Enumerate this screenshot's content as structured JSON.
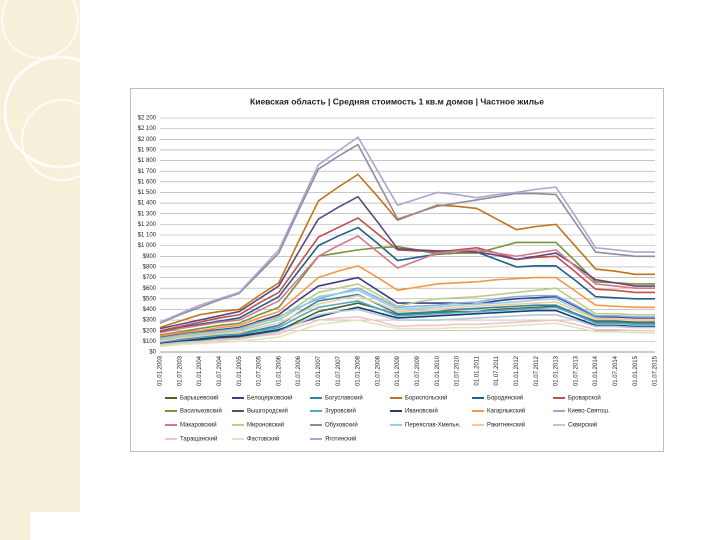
{
  "chart_data": {
    "type": "line",
    "title": "Киевская область | Средняя стоимость 1 кв.м домов | Частное жилье",
    "categories": [
      "01.01.2003",
      "01.07.2003",
      "01.01.2004",
      "01.07.2004",
      "01.01.2005",
      "01.07.2005",
      "01.01.2006",
      "01.07.2006",
      "01.01.2007",
      "01.07.2007",
      "01.01.2008",
      "01.07.2008",
      "01.01.2009",
      "01.07.2009",
      "01.01.2010",
      "01.07.2010",
      "01.01.2011",
      "01.07.2011",
      "01.01.2012",
      "01.07.2012",
      "01.01.2013",
      "01.07.2013",
      "01.01.2014",
      "01.07.2014",
      "01.01.2015",
      "01.07.2015"
    ],
    "ylim": [
      0,
      2200
    ],
    "yticks": [
      {
        "value": 0,
        "label": "$0"
      },
      {
        "value": 100,
        "label": "$100"
      },
      {
        "value": 200,
        "label": "$200"
      },
      {
        "value": 300,
        "label": "$300"
      },
      {
        "value": 400,
        "label": "$400"
      },
      {
        "value": 500,
        "label": "$500"
      },
      {
        "value": 600,
        "label": "$600"
      },
      {
        "value": 700,
        "label": "$700"
      },
      {
        "value": 800,
        "label": "$800"
      },
      {
        "value": 900,
        "label": "$900"
      },
      {
        "value": 1000,
        "label": "$1 000"
      },
      {
        "value": 1100,
        "label": "$1 100"
      },
      {
        "value": 1200,
        "label": "$1 200"
      },
      {
        "value": 1300,
        "label": "$1 300"
      },
      {
        "value": 1400,
        "label": "$1 400"
      },
      {
        "value": 1500,
        "label": "$1 500"
      },
      {
        "value": 1600,
        "label": "$1 600"
      },
      {
        "value": 1700,
        "label": "$1 700"
      },
      {
        "value": 1800,
        "label": "$1 800"
      },
      {
        "value": 1900,
        "label": "$1 900"
      },
      {
        "value": 2000,
        "label": "$2 000"
      },
      {
        "value": 2100,
        "label": "$2 100"
      },
      {
        "value": 2200,
        "label": "$2 200"
      }
    ],
    "grid": true,
    "legend": "bottom",
    "series": [
      {
        "name": "Барышевский",
        "color": "#4f6228",
        "values": [
          80,
          100,
          110,
          130,
          140,
          170,
          200,
          290,
          380,
          420,
          460,
          410,
          350,
          360,
          370,
          380,
          380,
          400,
          410,
          420,
          430,
          360,
          290,
          290,
          280,
          280
        ]
      },
      {
        "name": "Белоцерковский",
        "color": "#403c8c",
        "values": [
          140,
          170,
          190,
          210,
          230,
          290,
          350,
          490,
          620,
          660,
          700,
          580,
          460,
          460,
          460,
          460,
          450,
          480,
          500,
          510,
          520,
          430,
          330,
          330,
          320,
          320
        ]
      },
      {
        "name": "Богуславский",
        "color": "#31859c",
        "values": [
          100,
          120,
          140,
          160,
          170,
          210,
          250,
          370,
          480,
          510,
          540,
          450,
          360,
          370,
          380,
          400,
          410,
          420,
          430,
          440,
          440,
          360,
          280,
          280,
          270,
          270
        ]
      },
      {
        "name": "Бориспольский",
        "color": "#c0741a",
        "values": [
          230,
          290,
          350,
          380,
          400,
          530,
          650,
          1040,
          1420,
          1550,
          1670,
          1460,
          1240,
          1310,
          1380,
          1370,
          1350,
          1250,
          1150,
          1180,
          1200,
          990,
          780,
          760,
          730,
          730
        ]
      },
      {
        "name": "Бородянский",
        "color": "#1f5f8b",
        "values": [
          190,
          230,
          260,
          290,
          320,
          420,
          520,
          760,
          1000,
          1090,
          1170,
          1020,
          860,
          890,
          920,
          930,
          940,
          870,
          800,
          810,
          810,
          670,
          520,
          510,
          500,
          500
        ]
      },
      {
        "name": "Броварской",
        "color": "#c0504d",
        "values": [
          200,
          240,
          280,
          320,
          350,
          460,
          560,
          820,
          1080,
          1170,
          1260,
          1110,
          960,
          950,
          940,
          960,
          980,
          930,
          870,
          890,
          900,
          750,
          590,
          580,
          560,
          560
        ]
      },
      {
        "name": "Васильковский",
        "color": "#77933c",
        "values": [
          160,
          190,
          220,
          250,
          270,
          350,
          420,
          660,
          900,
          930,
          960,
          980,
          990,
          960,
          920,
          930,
          930,
          980,
          1030,
          1030,
          1030,
          850,
          660,
          650,
          640,
          640
        ]
      },
      {
        "name": "Вышгородский",
        "color": "#5f497a",
        "values": [
          220,
          260,
          300,
          340,
          380,
          500,
          620,
          940,
          1250,
          1360,
          1460,
          1220,
          970,
          960,
          950,
          950,
          940,
          910,
          870,
          900,
          930,
          810,
          680,
          650,
          620,
          620
        ]
      },
      {
        "name": "Згуровский",
        "color": "#4bacc6",
        "values": [
          90,
          110,
          130,
          150,
          160,
          200,
          230,
          330,
          420,
          450,
          480,
          410,
          340,
          350,
          360,
          370,
          380,
          390,
          400,
          410,
          420,
          350,
          270,
          270,
          260,
          260
        ]
      },
      {
        "name": "Ивановский",
        "color": "#1f3c6e",
        "values": [
          80,
          100,
          120,
          140,
          150,
          180,
          210,
          270,
          330,
          380,
          420,
          370,
          320,
          330,
          340,
          350,
          360,
          370,
          380,
          390,
          390,
          320,
          250,
          250,
          240,
          240
        ]
      },
      {
        "name": "Кагарлыкский",
        "color": "#f79646",
        "values": [
          150,
          180,
          200,
          230,
          250,
          320,
          380,
          540,
          700,
          760,
          810,
          700,
          580,
          610,
          640,
          650,
          660,
          680,
          690,
          700,
          700,
          570,
          440,
          430,
          420,
          420
        ]
      },
      {
        "name": "Киево-Святош.",
        "color": "#8eaadb",
        "values": [
          130,
          160,
          180,
          200,
          220,
          280,
          330,
          420,
          500,
          550,
          600,
          510,
          420,
          430,
          440,
          460,
          470,
          500,
          520,
          530,
          530,
          440,
          340,
          340,
          330,
          330
        ]
      },
      {
        "name": "Макаровский",
        "color": "#d9758c",
        "values": [
          180,
          220,
          250,
          280,
          300,
          390,
          480,
          690,
          900,
          1000,
          1090,
          940,
          790,
          860,
          930,
          950,
          960,
          930,
          900,
          930,
          960,
          800,
          640,
          620,
          600,
          600
        ]
      },
      {
        "name": "Мироновский",
        "color": "#b7d086",
        "values": [
          120,
          150,
          170,
          190,
          210,
          270,
          320,
          440,
          560,
          600,
          640,
          540,
          430,
          470,
          500,
          510,
          520,
          540,
          560,
          580,
          600,
          480,
          360,
          360,
          350,
          350
        ]
      },
      {
        "name": "Обуховский",
        "color": "#948a9f",
        "values": [
          270,
          350,
          420,
          490,
          550,
          740,
          930,
          1330,
          1720,
          1840,
          1950,
          1600,
          1250,
          1310,
          1370,
          1400,
          1430,
          1460,
          1490,
          1490,
          1480,
          1210,
          940,
          920,
          900,
          900
        ]
      },
      {
        "name": "Переяслав-Хмельн.",
        "color": "#8cd3e6",
        "values": [
          110,
          140,
          160,
          180,
          200,
          250,
          300,
          410,
          520,
          550,
          580,
          490,
          400,
          410,
          420,
          440,
          450,
          460,
          470,
          490,
          500,
          410,
          320,
          310,
          300,
          300
        ]
      },
      {
        "name": "Ракитнянский",
        "color": "#f9c89a",
        "values": [
          100,
          130,
          150,
          170,
          180,
          230,
          270,
          360,
          450,
          490,
          530,
          460,
          380,
          390,
          400,
          420,
          430,
          440,
          450,
          460,
          470,
          390,
          310,
          310,
          300,
          300
        ]
      },
      {
        "name": "Сквирский",
        "color": "#b6c8db",
        "values": [
          70,
          90,
          100,
          120,
          130,
          160,
          190,
          270,
          350,
          380,
          400,
          350,
          300,
          300,
          300,
          310,
          320,
          330,
          340,
          350,
          350,
          300,
          240,
          240,
          230,
          230
        ]
      },
      {
        "name": "Таращанский",
        "color": "#f2c4c6",
        "values": [
          60,
          80,
          90,
          110,
          120,
          150,
          170,
          240,
          300,
          320,
          330,
          290,
          240,
          250,
          250,
          260,
          260,
          270,
          280,
          290,
          300,
          260,
          210,
          210,
          200,
          200
        ]
      },
      {
        "name": "Фастовский",
        "color": "#dbe8bb",
        "values": [
          50,
          70,
          80,
          90,
          100,
          120,
          140,
          200,
          260,
          280,
          300,
          260,
          220,
          220,
          220,
          230,
          230,
          240,
          250,
          260,
          270,
          230,
          190,
          190,
          180,
          180
        ]
      },
      {
        "name": "Яготинский",
        "color": "#a9a6cf",
        "values": [
          280,
          360,
          440,
          500,
          560,
          760,
          960,
          1360,
          1760,
          1890,
          2020,
          1700,
          1380,
          1440,
          1500,
          1480,
          1450,
          1480,
          1500,
          1530,
          1550,
          1270,
          980,
          960,
          940,
          940
        ]
      }
    ]
  }
}
